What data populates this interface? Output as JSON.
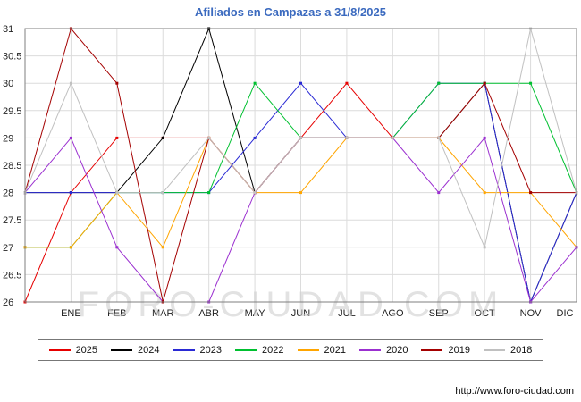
{
  "title": "Afiliados en Campazas a 31/8/2025",
  "watermark": "FORO-CIUDAD.COM",
  "footer": {
    "url": "http://www.foro-ciudad.com"
  },
  "chart_data": {
    "type": "line",
    "title": "Afiliados en Campazas a 31/8/2025",
    "x_labels": [
      "ENE",
      "FEB",
      "MAR",
      "ABR",
      "MAY",
      "JUN",
      "JUL",
      "AGO",
      "SEP",
      "OCT",
      "NOV",
      "DIC"
    ],
    "ylim": [
      26,
      31
    ],
    "ytick_step": 0.5,
    "grid": true,
    "legend_position": "bottom",
    "note": "values[0] is the line start at the left plot edge, values[1..12] are ENE..DIC; the 2025 series ends at AGO (report date 31/8/2025); values estimated from gridlines",
    "series": [
      {
        "name": "2025",
        "color": "#e60000",
        "values": [
          26,
          28,
          29,
          29,
          29,
          28,
          29,
          30,
          29,
          null,
          null,
          null,
          null
        ]
      },
      {
        "name": "2024",
        "color": "#000000",
        "values": [
          28,
          28,
          28,
          29,
          31,
          28,
          29,
          29,
          29,
          29,
          30,
          26,
          28
        ]
      },
      {
        "name": "2023",
        "color": "#2a2ad4",
        "values": [
          28,
          28,
          28,
          28,
          28,
          29,
          30,
          29,
          29,
          30,
          30,
          26,
          28
        ]
      },
      {
        "name": "2022",
        "color": "#00c030",
        "values": [
          27,
          27,
          28,
          28,
          28,
          30,
          29,
          29,
          29,
          30,
          30,
          30,
          28
        ]
      },
      {
        "name": "2021",
        "color": "#ffa500",
        "values": [
          27,
          27,
          28,
          27,
          29,
          28,
          28,
          29,
          29,
          29,
          28,
          28,
          27
        ]
      },
      {
        "name": "2020",
        "color": "#9b30d0",
        "values": [
          28,
          29,
          27,
          26,
          26,
          28,
          29,
          29,
          29,
          28,
          29,
          26,
          27
        ]
      },
      {
        "name": "2019",
        "color": "#a40000",
        "values": [
          28,
          31,
          30,
          26,
          29,
          28,
          29,
          29,
          29,
          29,
          30,
          28,
          28
        ]
      },
      {
        "name": "2018",
        "color": "#c0c0c0",
        "values": [
          28,
          30,
          28,
          28,
          29,
          28,
          29,
          29,
          29,
          29,
          27,
          31,
          28
        ]
      }
    ]
  }
}
